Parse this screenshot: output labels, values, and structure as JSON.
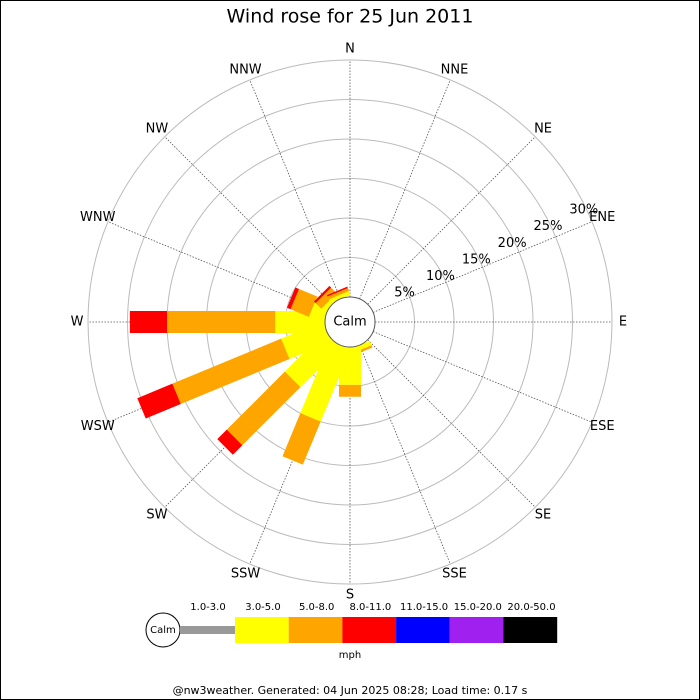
{
  "chart_data": {
    "type": "windrose",
    "title": "Wind rose for 25 Jun 2011",
    "directions": [
      "N",
      "NNE",
      "NE",
      "ENE",
      "E",
      "ESE",
      "SE",
      "SSE",
      "S",
      "SSW",
      "SW",
      "WSW",
      "W",
      "WNW",
      "NW",
      "NNW"
    ],
    "rlim": [
      0,
      30
    ],
    "rticks": [
      {
        "value": 5,
        "label": "5%"
      },
      {
        "value": 10,
        "label": "10%"
      },
      {
        "value": 15,
        "label": "15%"
      },
      {
        "value": 20,
        "label": "20%"
      },
      {
        "value": 25,
        "label": "25%"
      },
      {
        "value": 30,
        "label": "30%"
      }
    ],
    "calm_label": "Calm",
    "unit_label": "mph",
    "series": [
      {
        "name": "1.0-3.0",
        "color": "#999999",
        "values": [
          0,
          0,
          0,
          0,
          0,
          0,
          0,
          0,
          0,
          0,
          0,
          0,
          0,
          0,
          0,
          0
        ]
      },
      {
        "name": "3.0-5.0",
        "color": "#ffff00",
        "values": [
          0,
          0,
          0,
          0,
          0,
          0,
          0,
          0.6,
          4.8,
          9.9,
          7.1,
          5.7,
          6.3,
          1.9,
          0.6,
          0.5
        ]
      },
      {
        "name": "5.0-8.0",
        "color": "#ffa500",
        "values": [
          0,
          0,
          0,
          0,
          0,
          0,
          0,
          0.3,
          1.5,
          5.9,
          10.4,
          14.9,
          13.7,
          2.5,
          1.0,
          0.4
        ]
      },
      {
        "name": "8.0-11.0",
        "color": "#ff0000",
        "values": [
          0,
          0,
          0,
          0,
          0,
          0,
          0,
          0,
          0,
          0,
          1.7,
          4.8,
          4.7,
          0.5,
          0.3,
          0.2
        ]
      },
      {
        "name": "11.0-15.0",
        "color": "#0000ff",
        "values": [
          0,
          0,
          0,
          0,
          0,
          0,
          0,
          0,
          0,
          0,
          0,
          0,
          0,
          0,
          0,
          0
        ]
      },
      {
        "name": "15.0-20.0",
        "color": "#a020f0",
        "values": [
          0,
          0,
          0,
          0,
          0,
          0,
          0,
          0,
          0,
          0,
          0,
          0,
          0,
          0,
          0,
          0
        ]
      },
      {
        "name": "20.0-50.0",
        "color": "#000000",
        "values": [
          0,
          0,
          0,
          0,
          0,
          0,
          0,
          0,
          0,
          0,
          0,
          0,
          0,
          0,
          0,
          0
        ]
      }
    ],
    "footer": "@nw3weather. Generated: 04 Jun 2025 08:28; Load time: 0.17 s"
  }
}
